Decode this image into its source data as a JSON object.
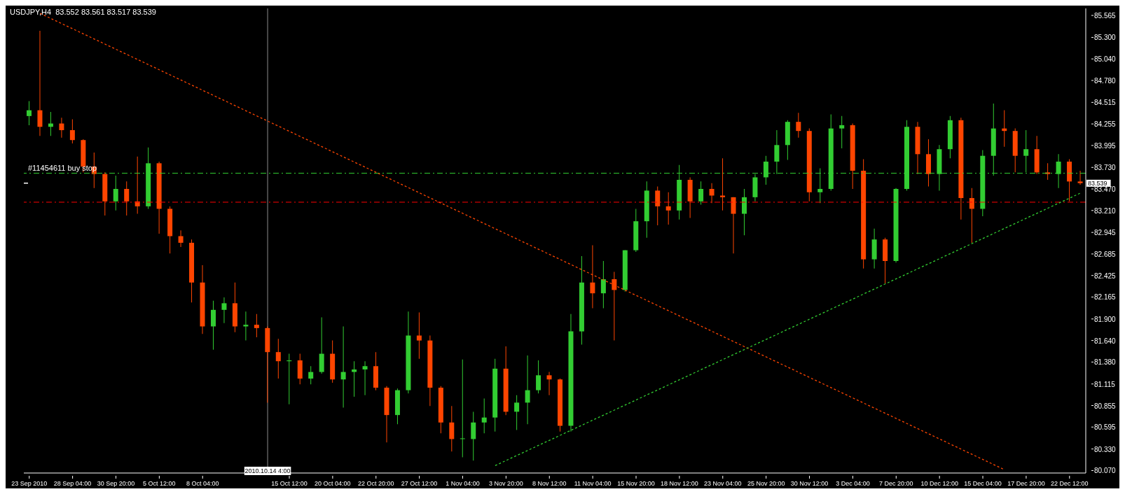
{
  "chart_data": {
    "type": "candlestick",
    "title": "USDJPY,H4  83.552 83.561 83.517 83.539",
    "categories": [
      "23 Sep 2010",
      null,
      null,
      null,
      "28 Sep 04:00",
      null,
      null,
      null,
      "30 Sep 20:00",
      null,
      null,
      null,
      "5 Oct 12:00",
      null,
      null,
      null,
      "8 Oct 04:00",
      null,
      null,
      null,
      null,
      null,
      "2010.10.14 4:00",
      null,
      "15 Oct 12:00",
      null,
      null,
      null,
      "20 Oct 04:00",
      null,
      null,
      null,
      "22 Oct 20:00",
      null,
      null,
      null,
      "27 Oct 12:00",
      null,
      null,
      null,
      "1 Nov 04:00",
      null,
      null,
      null,
      "3 Nov 20:00",
      null,
      null,
      null,
      "8 Nov 12:00",
      null,
      null,
      null,
      "11 Nov 04:00",
      null,
      null,
      null,
      "15 Nov 20:00",
      null,
      null,
      null,
      "18 Nov 12:00",
      null,
      null,
      null,
      "23 Nov 04:00",
      null,
      null,
      null,
      "25 Nov 20:00",
      null,
      null,
      null,
      "30 Nov 12:00",
      null,
      null,
      null,
      "3 Dec 04:00",
      null,
      null,
      null,
      "7 Dec 20:00",
      null,
      null,
      null,
      "10 Dec 12:00",
      null,
      null,
      null,
      "15 Dec 04:00",
      null,
      null,
      null,
      "17 Dec 20:00",
      null,
      null,
      null,
      "22 Dec 12:00",
      null
    ],
    "ohlc": [
      [
        84.35,
        84.53,
        84.24,
        84.42
      ],
      [
        84.42,
        85.38,
        84.11,
        84.22
      ],
      [
        84.22,
        84.4,
        84.11,
        84.26
      ],
      [
        84.26,
        84.33,
        84.09,
        84.18
      ],
      [
        84.18,
        84.31,
        84.02,
        84.06
      ],
      [
        84.06,
        84.07,
        83.67,
        83.74
      ],
      [
        83.74,
        83.91,
        83.48,
        83.65
      ],
      [
        83.65,
        83.67,
        83.15,
        83.32
      ],
      [
        83.32,
        83.63,
        83.21,
        83.47
      ],
      [
        83.47,
        83.56,
        83.15,
        83.32
      ],
      [
        83.32,
        83.86,
        83.17,
        83.26
      ],
      [
        83.26,
        83.97,
        83.23,
        83.78
      ],
      [
        83.78,
        83.8,
        82.93,
        83.23
      ],
      [
        83.23,
        83.26,
        82.69,
        82.9
      ],
      [
        82.9,
        82.97,
        82.77,
        82.82
      ],
      [
        82.82,
        82.86,
        82.1,
        82.34
      ],
      [
        82.34,
        82.55,
        81.72,
        81.81
      ],
      [
        81.81,
        82.12,
        81.53,
        82.01
      ],
      [
        82.01,
        82.16,
        81.85,
        82.09
      ],
      [
        82.09,
        82.34,
        81.74,
        81.81
      ],
      [
        81.81,
        81.99,
        81.64,
        81.83
      ],
      [
        81.83,
        81.96,
        81.68,
        81.79
      ],
      [
        81.79,
        81.81,
        80.89,
        81.5
      ],
      [
        81.5,
        81.66,
        81.18,
        81.39
      ],
      [
        81.39,
        81.48,
        80.87,
        81.4
      ],
      [
        81.4,
        81.48,
        81.11,
        81.18
      ],
      [
        81.18,
        81.33,
        81.11,
        81.26
      ],
      [
        81.26,
        81.92,
        81.24,
        81.48
      ],
      [
        81.48,
        81.64,
        81.13,
        81.17
      ],
      [
        81.17,
        81.81,
        80.83,
        81.26
      ],
      [
        81.26,
        81.39,
        80.96,
        81.29
      ],
      [
        81.29,
        81.39,
        80.98,
        81.33
      ],
      [
        81.33,
        81.5,
        81.04,
        81.07
      ],
      [
        81.07,
        81.09,
        80.41,
        80.74
      ],
      [
        80.74,
        81.06,
        80.63,
        81.04
      ],
      [
        81.04,
        81.99,
        81.0,
        81.7
      ],
      [
        81.7,
        81.98,
        81.42,
        81.64
      ],
      [
        81.64,
        81.7,
        80.85,
        81.07
      ],
      [
        81.07,
        81.09,
        80.52,
        80.65
      ],
      [
        80.65,
        80.85,
        80.3,
        80.45
      ],
      [
        80.45,
        81.41,
        80.23,
        80.45
      ],
      [
        80.45,
        80.78,
        80.19,
        80.65
      ],
      [
        80.65,
        80.94,
        80.52,
        80.71
      ],
      [
        80.71,
        81.42,
        80.54,
        81.3
      ],
      [
        81.3,
        81.57,
        80.74,
        80.78
      ],
      [
        80.78,
        80.98,
        80.56,
        80.89
      ],
      [
        80.89,
        81.46,
        80.63,
        81.04
      ],
      [
        81.04,
        81.4,
        81.0,
        81.22
      ],
      [
        81.22,
        81.26,
        80.98,
        81.17
      ],
      [
        81.17,
        81.18,
        80.54,
        80.61
      ],
      [
        80.61,
        81.96,
        80.54,
        81.75
      ],
      [
        81.75,
        82.66,
        81.59,
        82.34
      ],
      [
        82.34,
        82.79,
        82.03,
        82.21
      ],
      [
        82.21,
        82.6,
        82.03,
        82.38
      ],
      [
        82.38,
        82.47,
        81.64,
        82.25
      ],
      [
        82.25,
        82.73,
        82.23,
        82.73
      ],
      [
        82.73,
        83.23,
        82.71,
        83.08
      ],
      [
        83.08,
        83.56,
        82.88,
        83.45
      ],
      [
        83.45,
        83.5,
        83.03,
        83.26
      ],
      [
        83.26,
        83.43,
        83.04,
        83.21
      ],
      [
        83.21,
        83.76,
        83.1,
        83.58
      ],
      [
        83.58,
        83.61,
        83.12,
        83.32
      ],
      [
        83.32,
        83.56,
        83.28,
        83.47
      ],
      [
        83.47,
        83.54,
        83.3,
        83.39
      ],
      [
        83.39,
        83.84,
        83.21,
        83.37
      ],
      [
        83.37,
        83.37,
        82.69,
        83.17
      ],
      [
        83.17,
        83.47,
        82.91,
        83.37
      ],
      [
        83.37,
        83.65,
        83.32,
        83.61
      ],
      [
        83.61,
        83.87,
        83.52,
        83.8
      ],
      [
        83.8,
        84.18,
        83.65,
        84.0
      ],
      [
        84.0,
        84.3,
        83.82,
        84.28
      ],
      [
        84.28,
        84.39,
        84.09,
        84.17
      ],
      [
        84.17,
        84.2,
        83.32,
        83.43
      ],
      [
        83.43,
        83.72,
        83.3,
        83.47
      ],
      [
        83.47,
        84.37,
        83.45,
        84.2
      ],
      [
        84.2,
        84.35,
        83.96,
        84.24
      ],
      [
        84.24,
        84.26,
        83.47,
        83.69
      ],
      [
        83.69,
        83.83,
        82.51,
        82.62
      ],
      [
        82.62,
        82.99,
        82.51,
        82.86
      ],
      [
        82.86,
        82.88,
        82.33,
        82.6
      ],
      [
        82.6,
        83.48,
        82.58,
        83.47
      ],
      [
        83.47,
        84.3,
        83.45,
        84.22
      ],
      [
        84.22,
        84.28,
        83.65,
        83.89
      ],
      [
        83.89,
        84.07,
        83.5,
        83.65
      ],
      [
        83.65,
        84.0,
        83.45,
        83.95
      ],
      [
        83.95,
        84.35,
        83.84,
        84.3
      ],
      [
        84.3,
        84.33,
        83.1,
        83.36
      ],
      [
        83.36,
        83.48,
        82.82,
        83.23
      ],
      [
        83.23,
        83.94,
        83.14,
        83.87
      ],
      [
        83.87,
        84.5,
        83.63,
        84.2
      ],
      [
        84.2,
        84.42,
        83.98,
        84.17
      ],
      [
        84.17,
        84.2,
        83.67,
        83.87
      ],
      [
        83.87,
        84.18,
        83.67,
        83.95
      ],
      [
        83.95,
        84.11,
        83.65,
        83.67
      ],
      [
        83.67,
        83.78,
        83.58,
        83.65
      ],
      [
        83.65,
        83.89,
        83.48,
        83.8
      ],
      [
        83.8,
        83.83,
        83.32,
        83.56
      ],
      [
        83.56,
        83.69,
        83.52,
        83.54
      ]
    ],
    "colors": [
      "#32cd32",
      "#ff4500",
      "#32cd32",
      "#ff4500",
      "#ff4500",
      "#ff4500",
      "#ff4500",
      "#ff4500",
      "#32cd32",
      "#ff4500",
      "#ff4500",
      "#32cd32",
      "#ff4500",
      "#ff4500",
      "#ff4500",
      "#ff4500",
      "#ff4500",
      "#32cd32",
      "#32cd32",
      "#ff4500",
      "#32cd32",
      "#ff4500",
      "#ff4500",
      "#ff4500",
      "#32cd32",
      "#ff4500",
      "#32cd32",
      "#32cd32",
      "#ff4500",
      "#32cd32",
      "#32cd32",
      "#32cd32",
      "#ff4500",
      "#ff4500",
      "#32cd32",
      "#32cd32",
      "#ff4500",
      "#ff4500",
      "#ff4500",
      "#ff4500",
      "#32cd32",
      "#32cd32",
      "#32cd32",
      "#32cd32",
      "#ff4500",
      "#32cd32",
      "#32cd32",
      "#32cd32",
      "#ff4500",
      "#ff4500",
      "#32cd32",
      "#32cd32",
      "#ff4500",
      "#32cd32",
      "#ff4500",
      "#32cd32",
      "#32cd32",
      "#32cd32",
      "#ff4500",
      "#ff4500",
      "#32cd32",
      "#ff4500",
      "#32cd32",
      "#ff4500",
      "#ff4500",
      "#ff4500",
      "#32cd32",
      "#32cd32",
      "#32cd32",
      "#32cd32",
      "#32cd32",
      "#ff4500",
      "#ff4500",
      "#32cd32",
      "#32cd32",
      "#32cd32",
      "#ff4500",
      "#ff4500",
      "#32cd32",
      "#ff4500",
      "#32cd32",
      "#32cd32",
      "#ff4500",
      "#ff4500",
      "#32cd32",
      "#32cd32",
      "#ff4500",
      "#ff4500",
      "#32cd32",
      "#32cd32",
      "#ff4500",
      "#ff4500",
      "#32cd32",
      "#ff4500",
      "#ff4500",
      "#32cd32",
      "#ff4500",
      "#ff4500"
    ],
    "series": [
      {
        "type": "line",
        "color": "#ff4500",
        "line_style": "dotted",
        "values": [
          null,
          85.59,
          null,
          null,
          null,
          null,
          null,
          null,
          null,
          null,
          null,
          null,
          null,
          null,
          null,
          null,
          null,
          null,
          null,
          null,
          null,
          null,
          null,
          null,
          null,
          null,
          null,
          null,
          null,
          null,
          null,
          null,
          null,
          null,
          null,
          null,
          null,
          null,
          null,
          null,
          null,
          null,
          null,
          null,
          null,
          null,
          null,
          null,
          null,
          null,
          null,
          null,
          null,
          null,
          null,
          null,
          null,
          null,
          null,
          null,
          null,
          null,
          null,
          null,
          null,
          null,
          null,
          null,
          null,
          null,
          null,
          null,
          null,
          null,
          null,
          null,
          null,
          null,
          null,
          null,
          null,
          null,
          null,
          null,
          null,
          null,
          null,
          null,
          null,
          null,
          80.08,
          null,
          null,
          null,
          null,
          null,
          null,
          null
        ]
      },
      {
        "type": "line",
        "color": "#32cd32",
        "line_style": "dotted",
        "values": [
          null,
          null,
          null,
          null,
          null,
          null,
          null,
          null,
          null,
          null,
          null,
          null,
          null,
          null,
          null,
          null,
          null,
          null,
          null,
          null,
          null,
          null,
          null,
          null,
          null,
          null,
          null,
          null,
          null,
          null,
          null,
          null,
          null,
          null,
          null,
          null,
          null,
          null,
          null,
          null,
          null,
          null,
          null,
          80.13,
          null,
          null,
          null,
          null,
          null,
          null,
          null,
          null,
          null,
          null,
          null,
          null,
          null,
          null,
          null,
          null,
          null,
          null,
          null,
          null,
          null,
          null,
          null,
          null,
          null,
          null,
          null,
          null,
          null,
          null,
          null,
          null,
          null,
          null,
          null,
          null,
          null,
          null,
          null,
          null,
          null,
          null,
          null,
          null,
          null,
          null,
          null,
          null,
          null,
          null,
          null,
          null,
          null,
          83.42
        ]
      }
    ],
    "ylim": [
      80.04,
      85.65
    ],
    "yticks": [
      85.565,
      {
        "value": 85.3,
        "label": "85.300"
      },
      {
        "value": 85.04,
        "label": "85.040"
      },
      {
        "value": 84.78,
        "label": "84.780"
      },
      84.515,
      84.255,
      83.995,
      {
        "value": 83.73,
        "label": "83.730"
      },
      {
        "value": 83.47,
        "label": "83.470"
      },
      {
        "value": 83.21,
        "label": "83.210"
      },
      82.945,
      82.685,
      82.425,
      82.165,
      {
        "value": 81.9,
        "label": "81.900"
      },
      {
        "value": 81.64,
        "label": "81.640"
      },
      {
        "value": 81.38,
        "label": "81.380"
      },
      81.115,
      80.855,
      80.595,
      {
        "value": 80.33,
        "label": "80.330"
      },
      {
        "value": 80.07,
        "label": "80.070"
      }
    ],
    "ref_lines": [
      {
        "axis": "y",
        "value": 83.66,
        "label": "#11454611 buy stop",
        "color": "#32cd32",
        "line_style": "dashed"
      },
      {
        "axis": "y",
        "value": 83.31,
        "color": "#ff0000",
        "line_style": "dashed"
      },
      {
        "axis": "y",
        "value": 83.539,
        "label": "83.539",
        "color": "#ffffff"
      },
      {
        "axis": "x",
        "value": "2010.10.14 4:00",
        "color": "#ffffff",
        "line_style": "solid"
      }
    ]
  }
}
